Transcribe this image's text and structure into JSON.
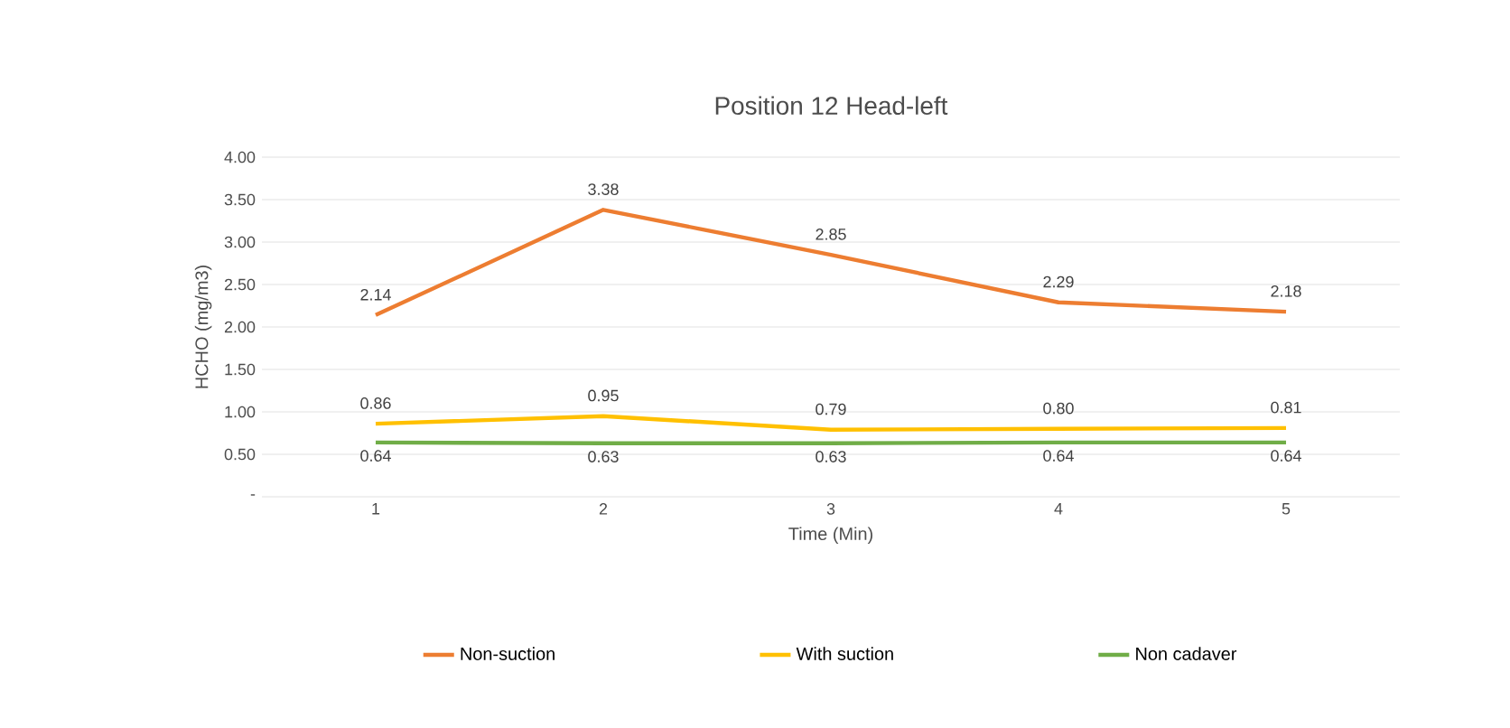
{
  "chart_data": {
    "type": "line",
    "title": "Position 12 Head-left",
    "xlabel": "Time (Min)",
    "ylabel": "HCHO (mg/m3)",
    "categories": [
      "1",
      "2",
      "3",
      "4",
      "5"
    ],
    "series": [
      {
        "name": "Non-suction",
        "color": "#ed7d31",
        "values": [
          2.14,
          3.38,
          2.85,
          2.29,
          2.18
        ],
        "value_labels": [
          "2.14",
          "3.38",
          "2.85",
          "2.29",
          "2.18"
        ]
      },
      {
        "name": "With suction",
        "color": "#ffc000",
        "values": [
          0.86,
          0.95,
          0.79,
          0.8,
          0.81
        ],
        "value_labels": [
          "0.86",
          "0.95",
          "0.79",
          "0.80",
          "0.81"
        ]
      },
      {
        "name": "Non cadaver",
        "color": "#70ad47",
        "values": [
          0.64,
          0.63,
          0.63,
          0.64,
          0.64
        ],
        "value_labels": [
          "0.64",
          "0.63",
          "0.63",
          "0.64",
          "0.64"
        ]
      }
    ],
    "ylim": [
      0,
      4
    ],
    "yticks": [
      {
        "value": 0,
        "label": "-"
      },
      {
        "value": 0.5,
        "label": "0.50"
      },
      {
        "value": 1,
        "label": "1.00"
      },
      {
        "value": 1.5,
        "label": "1.50"
      },
      {
        "value": 2,
        "label": "2.00"
      },
      {
        "value": 2.5,
        "label": "2.50"
      },
      {
        "value": 3,
        "label": "3.00"
      },
      {
        "value": 3.5,
        "label": "3.50"
      },
      {
        "value": 4,
        "label": "4.00"
      }
    ],
    "grid": "y",
    "legend": "bottom",
    "marker": "none",
    "line_style": "solid"
  }
}
